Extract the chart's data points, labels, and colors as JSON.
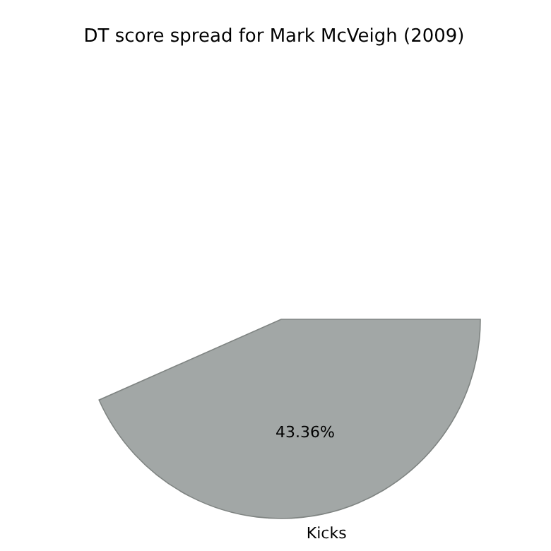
{
  "chart_data": {
    "type": "pie",
    "title": "DT score spread for Mark McVeigh (2009)",
    "categories": [
      "Kicks"
    ],
    "values": [
      43.36
    ],
    "colors": [
      "#a2a7a6"
    ],
    "value_labels": [
      "43.36%"
    ]
  }
}
